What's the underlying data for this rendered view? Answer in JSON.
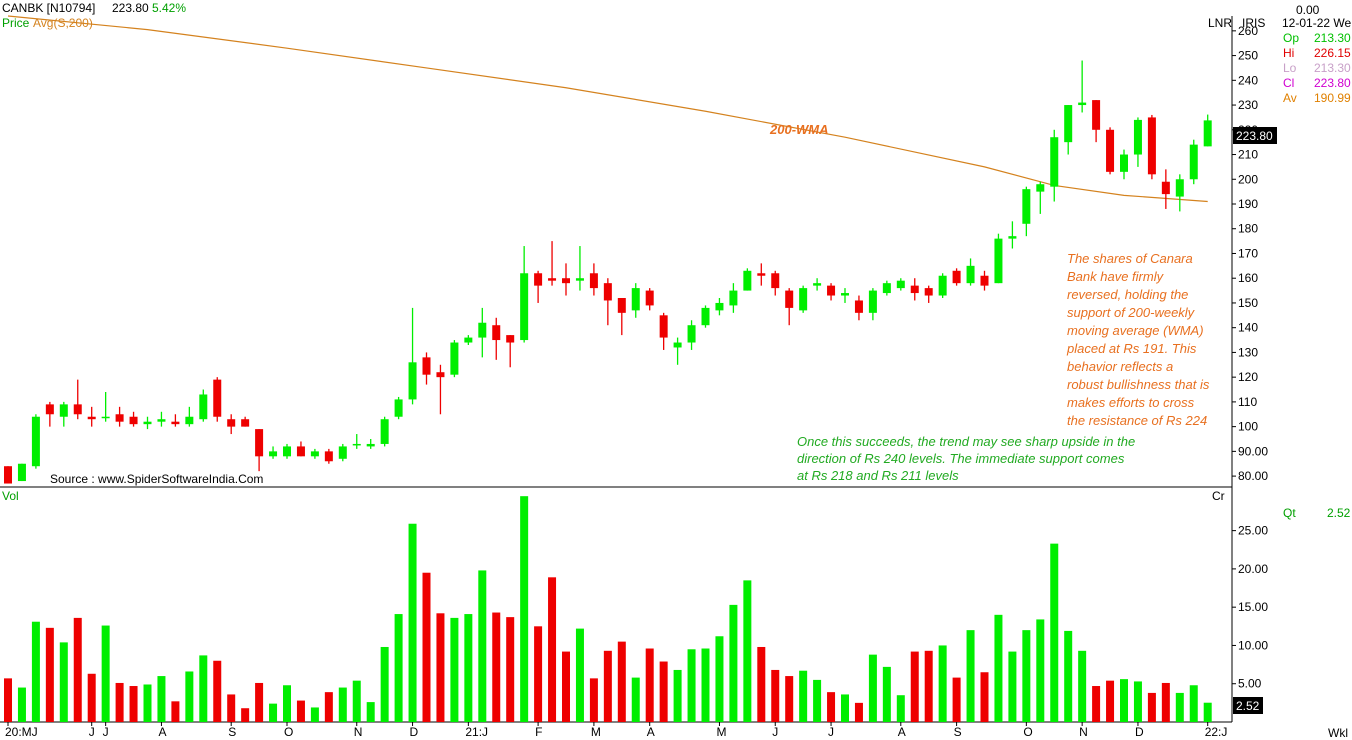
{
  "header": {
    "symbol": "CANBK [N10794]",
    "last": "223.80",
    "change": "5.42%",
    "indicator_label_price": "Price",
    "indicator_label_avg": "Avg(S,200)"
  },
  "side_panel": {
    "top_value": "0.00",
    "scale_label": "LNR",
    "brand": "IRIS",
    "date": "12-01-22 We",
    "rows": [
      {
        "key": "Op",
        "value": "213.30",
        "color": "#00c000"
      },
      {
        "key": "Hi",
        "value": "226.15",
        "color": "#e00000"
      },
      {
        "key": "Lo",
        "value": "213.30",
        "color": "#c8a0c8"
      },
      {
        "key": "Cl",
        "value": "223.80",
        "color": "#d000d0"
      },
      {
        "key": "Av",
        "value": "190.99",
        "color": "#e08000"
      }
    ],
    "qt_label": "Qt",
    "qt_value": "2.52"
  },
  "colors": {
    "up": "#00ee00",
    "down": "#ee0000",
    "wma": "#d4821e",
    "annotation_orange": "#e87020",
    "annotation_green": "#22aa22"
  },
  "source": "Source : www.SpiderSoftwareIndia.Com",
  "wma_label": "200-WMA",
  "annotation_orange": [
    "The shares of Canara",
    "Bank have firmly",
    "reversed, holding the",
    "support of 200-weekly",
    "moving average (WMA)",
    "placed at Rs 191. This",
    "behavior reflects a",
    "robust bullishness that is",
    "makes efforts to cross",
    "the resistance of Rs 224"
  ],
  "annotation_green": [
    "Once this succeeds, the trend may see sharp upside in the",
    "direction of Rs 240 levels. The immediate support comes",
    "at Rs 218 and Rs 211 levels"
  ],
  "volume_panel": {
    "label": "Vol",
    "unit_label": "Cr",
    "current_value": "2.52"
  },
  "footer_right": "Wkl",
  "chart_data": {
    "type": "candlestick",
    "price_axis": {
      "ticks": [
        80,
        90,
        100,
        110,
        120,
        130,
        140,
        150,
        160,
        170,
        180,
        190,
        200,
        210,
        220,
        230,
        240,
        250,
        260
      ],
      "tick_labels": [
        "80.00",
        "90.00",
        "100",
        "110",
        "120",
        "130",
        "140",
        "150",
        "160",
        "170",
        "180",
        "190",
        "200",
        "210",
        "220",
        "230",
        "240",
        "250",
        "260"
      ],
      "ylim": [
        76,
        266
      ],
      "last_price_label": "223.80"
    },
    "volume_axis": {
      "ticks": [
        5,
        10,
        15,
        20,
        25
      ],
      "tick_labels": [
        "5.00",
        "10.00",
        "15.00",
        "20.00",
        "25.00"
      ],
      "ylim": [
        0,
        29
      ]
    },
    "x_labels": [
      {
        "label": "20:MJ",
        "index": 0
      },
      {
        "label": "J",
        "index": 6
      },
      {
        "label": "J",
        "index": 7
      },
      {
        "label": "A",
        "index": 11
      },
      {
        "label": "S",
        "index": 16
      },
      {
        "label": "O",
        "index": 20
      },
      {
        "label": "N",
        "index": 25
      },
      {
        "label": "D",
        "index": 29
      },
      {
        "label": "21:J",
        "index": 33
      },
      {
        "label": "F",
        "index": 38
      },
      {
        "label": "M",
        "index": 42
      },
      {
        "label": "A",
        "index": 46
      },
      {
        "label": "M",
        "index": 51
      },
      {
        "label": "J",
        "index": 55
      },
      {
        "label": "J",
        "index": 59
      },
      {
        "label": "A",
        "index": 64
      },
      {
        "label": "S",
        "index": 68
      },
      {
        "label": "O",
        "index": 73
      },
      {
        "label": "N",
        "index": 77
      },
      {
        "label": "D",
        "index": 81
      },
      {
        "label": "22:J",
        "index": 86
      }
    ],
    "candles": [
      {
        "o": 84,
        "h": 84,
        "l": 77,
        "c": 77,
        "v": 5.7
      },
      {
        "o": 78,
        "h": 85,
        "l": 78,
        "c": 85,
        "v": 4.5
      },
      {
        "o": 84,
        "h": 105,
        "l": 83,
        "c": 104,
        "v": 13.1
      },
      {
        "o": 109,
        "h": 110,
        "l": 100,
        "c": 105,
        "v": 12.3
      },
      {
        "o": 104,
        "h": 110,
        "l": 100,
        "c": 109,
        "v": 10.4
      },
      {
        "o": 109,
        "h": 119,
        "l": 103,
        "c": 105,
        "v": 13.6
      },
      {
        "o": 104,
        "h": 108,
        "l": 100,
        "c": 103,
        "v": 6.3
      },
      {
        "o": 104,
        "h": 114,
        "l": 102,
        "c": 104,
        "v": 12.6
      },
      {
        "o": 105,
        "h": 108,
        "l": 100,
        "c": 102,
        "v": 5.1
      },
      {
        "o": 104,
        "h": 106,
        "l": 100,
        "c": 101,
        "v": 4.7
      },
      {
        "o": 101,
        "h": 104,
        "l": 99,
        "c": 102,
        "v": 4.9
      },
      {
        "o": 102,
        "h": 106,
        "l": 100,
        "c": 103,
        "v": 6.0
      },
      {
        "o": 102,
        "h": 105,
        "l": 100,
        "c": 101,
        "v": 2.7
      },
      {
        "o": 101,
        "h": 108,
        "l": 100,
        "c": 104,
        "v": 6.6
      },
      {
        "o": 103,
        "h": 115,
        "l": 102,
        "c": 113,
        "v": 8.7
      },
      {
        "o": 119,
        "h": 120,
        "l": 102,
        "c": 104,
        "v": 8.0
      },
      {
        "o": 103,
        "h": 105,
        "l": 97,
        "c": 100,
        "v": 3.6
      },
      {
        "o": 103,
        "h": 104,
        "l": 100,
        "c": 100,
        "v": 1.8
      },
      {
        "o": 99,
        "h": 99,
        "l": 82,
        "c": 88,
        "v": 5.1
      },
      {
        "o": 88,
        "h": 92,
        "l": 87,
        "c": 90,
        "v": 2.4
      },
      {
        "o": 88,
        "h": 93,
        "l": 87,
        "c": 92,
        "v": 4.8
      },
      {
        "o": 92,
        "h": 94,
        "l": 88,
        "c": 88,
        "v": 2.8
      },
      {
        "o": 88,
        "h": 91,
        "l": 87,
        "c": 90,
        "v": 1.9
      },
      {
        "o": 90,
        "h": 91,
        "l": 85,
        "c": 86,
        "v": 3.9
      },
      {
        "o": 87,
        "h": 93,
        "l": 86,
        "c": 92,
        "v": 4.5
      },
      {
        "o": 93,
        "h": 97,
        "l": 91,
        "c": 93,
        "v": 5.4
      },
      {
        "o": 92,
        "h": 95,
        "l": 91,
        "c": 93,
        "v": 2.6
      },
      {
        "o": 93,
        "h": 104,
        "l": 92,
        "c": 103,
        "v": 9.8
      },
      {
        "o": 104,
        "h": 112,
        "l": 103,
        "c": 111,
        "v": 14.1
      },
      {
        "o": 111,
        "h": 148,
        "l": 109,
        "c": 126,
        "v": 25.9
      },
      {
        "o": 128,
        "h": 130,
        "l": 117,
        "c": 121,
        "v": 19.5
      },
      {
        "o": 122,
        "h": 125,
        "l": 105,
        "c": 120,
        "v": 14.2
      },
      {
        "o": 121,
        "h": 135,
        "l": 120,
        "c": 134,
        "v": 13.6
      },
      {
        "o": 134,
        "h": 137,
        "l": 133,
        "c": 136,
        "v": 14.1
      },
      {
        "o": 136,
        "h": 148,
        "l": 128,
        "c": 142,
        "v": 19.8
      },
      {
        "o": 141,
        "h": 144,
        "l": 127,
        "c": 135,
        "v": 14.3
      },
      {
        "o": 137,
        "h": 137,
        "l": 124,
        "c": 134,
        "v": 13.7
      },
      {
        "o": 135,
        "h": 173,
        "l": 134,
        "c": 162,
        "v": 29.5
      },
      {
        "o": 162,
        "h": 163,
        "l": 150,
        "c": 157,
        "v": 12.5
      },
      {
        "o": 160,
        "h": 175,
        "l": 157,
        "c": 159,
        "v": 18.9
      },
      {
        "o": 160,
        "h": 166,
        "l": 153,
        "c": 158,
        "v": 9.2
      },
      {
        "o": 159,
        "h": 173,
        "l": 155,
        "c": 160,
        "v": 12.2
      },
      {
        "o": 162,
        "h": 166,
        "l": 153,
        "c": 156,
        "v": 5.7
      },
      {
        "o": 158,
        "h": 160,
        "l": 141,
        "c": 151,
        "v": 9.3
      },
      {
        "o": 152,
        "h": 152,
        "l": 137,
        "c": 146,
        "v": 10.5
      },
      {
        "o": 147,
        "h": 158,
        "l": 144,
        "c": 156,
        "v": 5.8
      },
      {
        "o": 155,
        "h": 156,
        "l": 147,
        "c": 149,
        "v": 9.6
      },
      {
        "o": 145,
        "h": 146,
        "l": 131,
        "c": 136,
        "v": 7.9
      },
      {
        "o": 132,
        "h": 136,
        "l": 125,
        "c": 134,
        "v": 6.8
      },
      {
        "o": 134,
        "h": 143,
        "l": 131,
        "c": 141,
        "v": 9.5
      },
      {
        "o": 141,
        "h": 149,
        "l": 140,
        "c": 148,
        "v": 9.6
      },
      {
        "o": 147,
        "h": 152,
        "l": 145,
        "c": 150,
        "v": 11.2
      },
      {
        "o": 149,
        "h": 158,
        "l": 146,
        "c": 155,
        "v": 15.3
      },
      {
        "o": 155,
        "h": 164,
        "l": 155,
        "c": 163,
        "v": 18.5
      },
      {
        "o": 162,
        "h": 166,
        "l": 157,
        "c": 161,
        "v": 9.8
      },
      {
        "o": 162,
        "h": 163,
        "l": 153,
        "c": 156,
        "v": 6.8
      },
      {
        "o": 155,
        "h": 156,
        "l": 141,
        "c": 148,
        "v": 6.0
      },
      {
        "o": 147,
        "h": 157,
        "l": 146,
        "c": 156,
        "v": 6.7
      },
      {
        "o": 157,
        "h": 160,
        "l": 155,
        "c": 158,
        "v": 5.5
      },
      {
        "o": 157,
        "h": 158,
        "l": 151,
        "c": 153,
        "v": 3.9
      },
      {
        "o": 153,
        "h": 156,
        "l": 150,
        "c": 154,
        "v": 3.6
      },
      {
        "o": 151,
        "h": 153,
        "l": 143,
        "c": 146,
        "v": 2.5
      },
      {
        "o": 146,
        "h": 156,
        "l": 143,
        "c": 155,
        "v": 8.8
      },
      {
        "o": 154,
        "h": 159,
        "l": 153,
        "c": 158,
        "v": 7.2
      },
      {
        "o": 156,
        "h": 160,
        "l": 155,
        "c": 159,
        "v": 3.5
      },
      {
        "o": 157,
        "h": 160,
        "l": 151,
        "c": 154,
        "v": 9.2
      },
      {
        "o": 156,
        "h": 157,
        "l": 150,
        "c": 153,
        "v": 9.3
      },
      {
        "o": 153,
        "h": 162,
        "l": 152,
        "c": 161,
        "v": 10.0
      },
      {
        "o": 163,
        "h": 164,
        "l": 157,
        "c": 158,
        "v": 5.8
      },
      {
        "o": 158,
        "h": 168,
        "l": 157,
        "c": 165,
        "v": 12.0
      },
      {
        "o": 161,
        "h": 163,
        "l": 155,
        "c": 157,
        "v": 6.5
      },
      {
        "o": 158,
        "h": 178,
        "l": 158,
        "c": 176,
        "v": 14.0
      },
      {
        "o": 176,
        "h": 183,
        "l": 172,
        "c": 177,
        "v": 9.2
      },
      {
        "o": 182,
        "h": 197,
        "l": 177,
        "c": 196,
        "v": 12.0
      },
      {
        "o": 195,
        "h": 199,
        "l": 186,
        "c": 198,
        "v": 13.4
      },
      {
        "o": 197,
        "h": 220,
        "l": 191,
        "c": 217,
        "v": 23.3
      },
      {
        "o": 215,
        "h": 230,
        "l": 210,
        "c": 230,
        "v": 11.9
      },
      {
        "o": 230,
        "h": 248,
        "l": 227,
        "c": 231,
        "v": 9.3
      },
      {
        "o": 232,
        "h": 232,
        "l": 215,
        "c": 220,
        "v": 4.7
      },
      {
        "o": 220,
        "h": 221,
        "l": 202,
        "c": 203,
        "v": 5.4
      },
      {
        "o": 203,
        "h": 212,
        "l": 200,
        "c": 210,
        "v": 5.6
      },
      {
        "o": 210,
        "h": 225,
        "l": 205,
        "c": 224,
        "v": 5.3
      },
      {
        "o": 225,
        "h": 226,
        "l": 200,
        "c": 202,
        "v": 3.8
      },
      {
        "o": 199,
        "h": 204,
        "l": 188,
        "c": 194,
        "v": 5.1
      },
      {
        "o": 193,
        "h": 202,
        "l": 187,
        "c": 200,
        "v": 3.8
      },
      {
        "o": 200,
        "h": 216,
        "l": 198,
        "c": 214,
        "v": 4.8
      },
      {
        "o": 213.3,
        "h": 226.15,
        "l": 213.3,
        "c": 223.8,
        "v": 2.52
      }
    ],
    "wma": {
      "name": "Avg(S,200)",
      "points": [
        [
          0,
          266
        ],
        [
          10,
          260.5
        ],
        [
          20,
          253
        ],
        [
          30,
          245
        ],
        [
          40,
          237
        ],
        [
          50,
          227.5
        ],
        [
          60,
          217
        ],
        [
          70,
          205
        ],
        [
          75,
          197.5
        ],
        [
          80,
          193.5
        ],
        [
          86,
          191
        ]
      ]
    }
  }
}
